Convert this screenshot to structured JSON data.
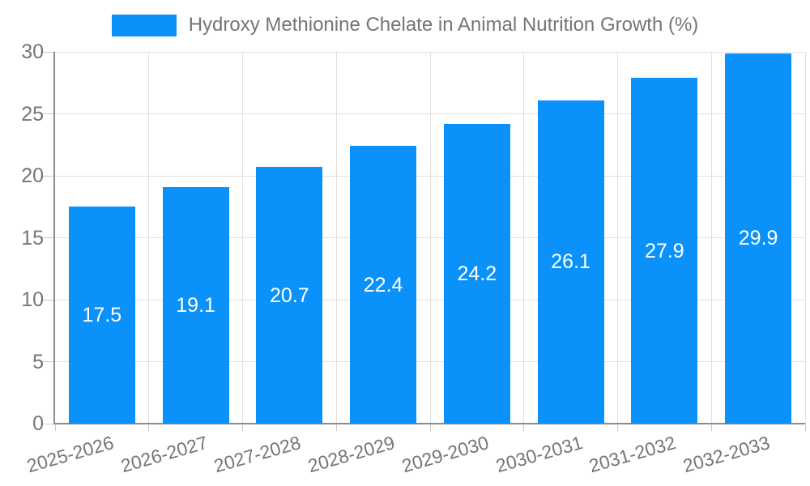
{
  "legend": {
    "label": "Hydroxy Methionine Chelate in Animal Nutrition Growth (%)"
  },
  "chart_data": {
    "type": "bar",
    "title": "Hydroxy Methionine Chelate in Animal Nutrition Growth (%)",
    "categories": [
      "2025-2026",
      "2026-2027",
      "2027-2028",
      "2028-2029",
      "2029-2030",
      "2030-2031",
      "2031-2032",
      "2032-2033"
    ],
    "values": [
      17.5,
      19.1,
      20.7,
      22.4,
      24.2,
      26.1,
      27.9,
      29.9
    ],
    "value_labels": [
      "17.5",
      "19.1",
      "20.7",
      "22.4",
      "24.2",
      "26.1",
      "27.9",
      "29.9"
    ],
    "xlabel": "",
    "ylabel": "",
    "ylim": [
      0,
      30
    ],
    "ytick_step": 5,
    "ytick_labels": [
      "0",
      "5",
      "10",
      "15",
      "20",
      "25",
      "30"
    ],
    "grid": true,
    "legend_position": "top",
    "colors": {
      "bar": "#0b91fa",
      "value_label": "#ffffff",
      "axis": "#8c8c8c",
      "grid": "#e0e0e0",
      "tick": "#c9c9c9",
      "text": "#757575"
    }
  }
}
